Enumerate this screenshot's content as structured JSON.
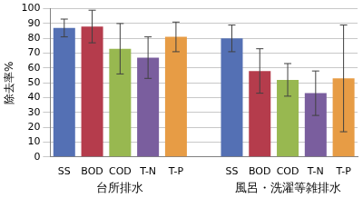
{
  "chart_data": {
    "type": "bar",
    "categories": [
      "SS",
      "BOD",
      "COD",
      "T-N",
      "T-P"
    ],
    "colors": [
      "#5470b4",
      "#b53c4c",
      "#98b850",
      "#7a5e9e",
      "#e79c45"
    ],
    "series": [
      {
        "name": "台所排水",
        "values": [
          87,
          88,
          73,
          67,
          81
        ],
        "errors": [
          6,
          11,
          17,
          14,
          10
        ]
      },
      {
        "name": "風呂・洗濯等雑排水",
        "values": [
          80,
          58,
          52,
          43,
          53
        ],
        "errors": [
          9,
          15,
          11,
          15,
          36
        ]
      }
    ],
    "y_label": "除去率%",
    "ylim": [
      0,
      100
    ],
    "yticks": [
      0,
      10,
      20,
      30,
      40,
      50,
      60,
      70,
      80,
      90,
      100
    ],
    "grid": true
  }
}
